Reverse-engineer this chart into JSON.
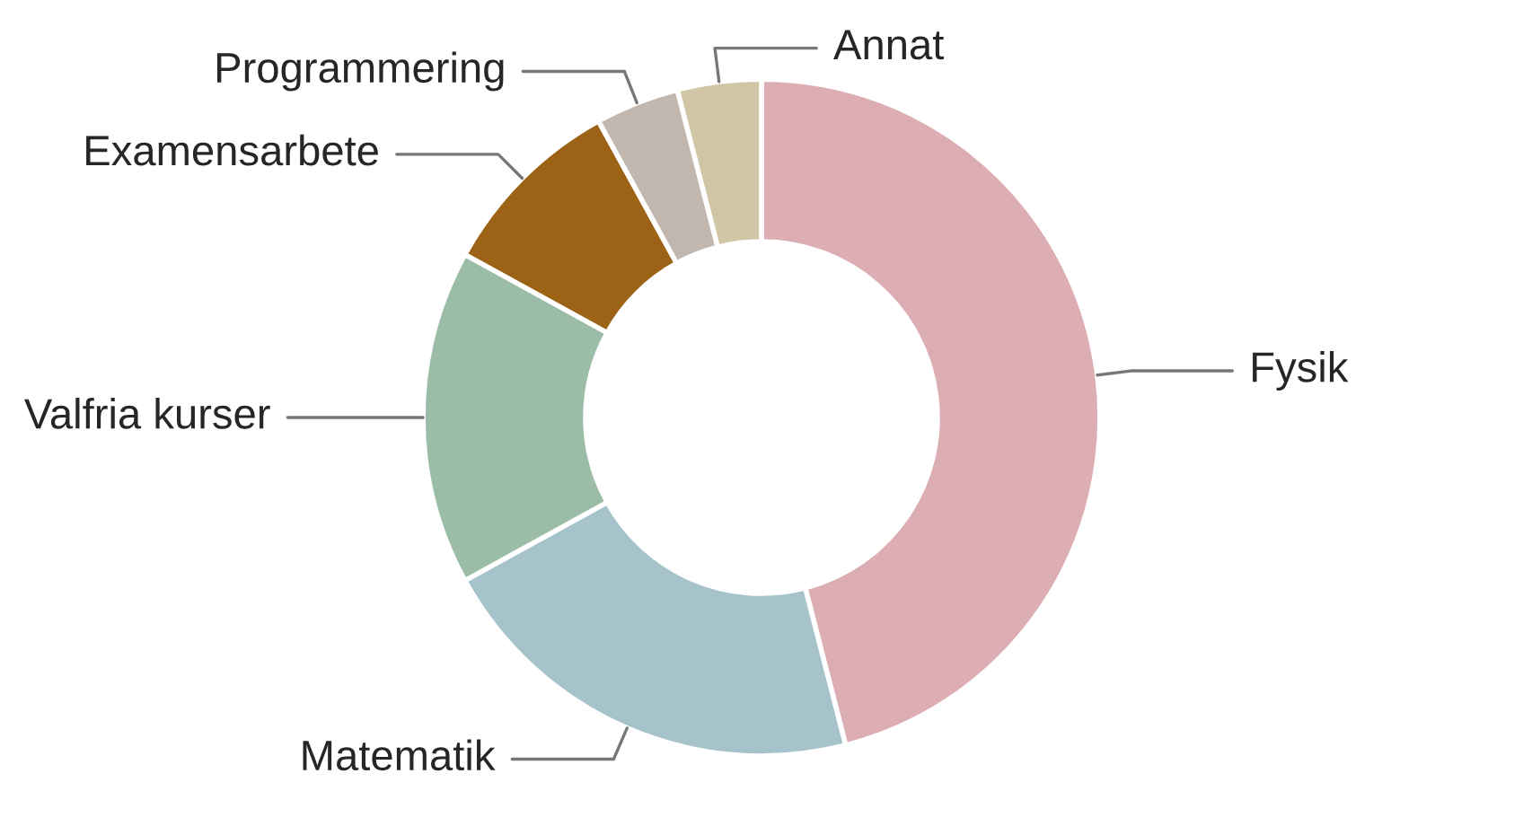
{
  "chart_data": {
    "type": "donut",
    "categories": [
      "Fysik",
      "Matematik",
      "Valfria kurser",
      "Examensarbete",
      "Programmering",
      "Annat"
    ],
    "values": [
      46,
      21,
      16,
      9,
      4,
      4
    ],
    "colors": [
      "#dcadb2",
      "#a6c3cc",
      "#9bbda8",
      "#9c6215",
      "#c2b7ae",
      "#d0c6a6"
    ],
    "legend": false
  }
}
